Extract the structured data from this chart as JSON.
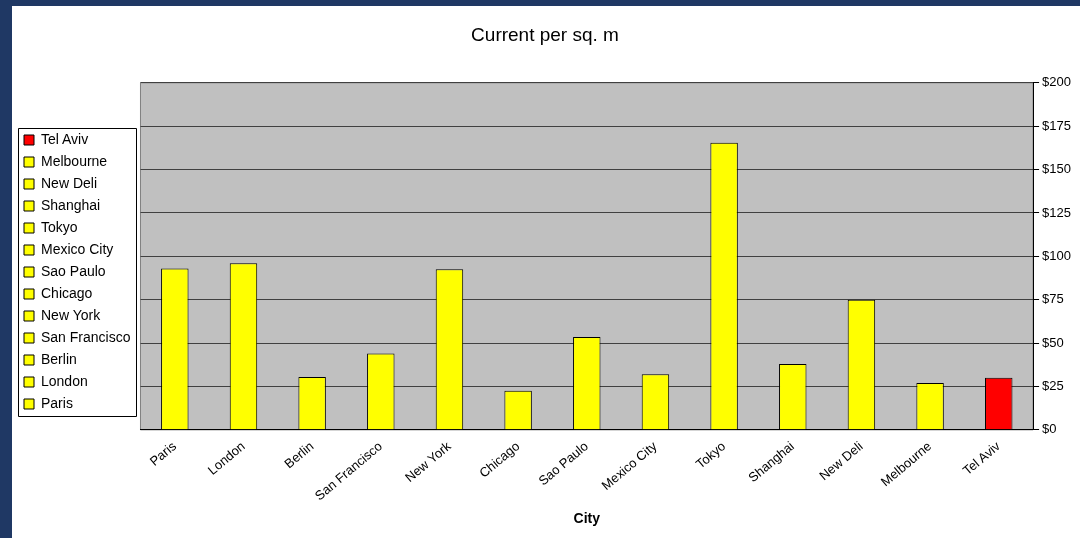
{
  "chart_data": {
    "type": "bar",
    "title": "Current per sq. m",
    "xlabel": "City",
    "categories": [
      "Paris",
      "London",
      "Berlin",
      "San Francisco",
      "New York",
      "Chicago",
      "Sao Paulo",
      "Mexico City",
      "Tokyo",
      "Shanghai",
      "New Deli",
      "Melbourne",
      "Tel Aviv"
    ],
    "series": [
      {
        "name": "Paris",
        "color": "#ffff00",
        "values": [
          93,
          null,
          null,
          null,
          null,
          null,
          null,
          null,
          null,
          null,
          null,
          null,
          null
        ]
      },
      {
        "name": "London",
        "color": "#ffff00",
        "values": [
          null,
          96,
          null,
          null,
          null,
          null,
          null,
          null,
          null,
          null,
          null,
          null,
          null
        ]
      },
      {
        "name": "Berlin",
        "color": "#ffff00",
        "values": [
          null,
          null,
          30.5,
          null,
          null,
          null,
          null,
          null,
          null,
          null,
          null,
          null,
          null
        ]
      },
      {
        "name": "San Francisco",
        "color": "#ffff00",
        "values": [
          null,
          null,
          null,
          44,
          null,
          null,
          null,
          null,
          null,
          null,
          null,
          null,
          null
        ]
      },
      {
        "name": "New York",
        "color": "#ffff00",
        "values": [
          null,
          null,
          null,
          null,
          92.5,
          null,
          null,
          null,
          null,
          null,
          null,
          null,
          null
        ]
      },
      {
        "name": "Chicago",
        "color": "#ffff00",
        "values": [
          null,
          null,
          null,
          null,
          null,
          22.5,
          null,
          null,
          null,
          null,
          null,
          null,
          null
        ]
      },
      {
        "name": "Sao Paulo",
        "color": "#ffff00",
        "values": [
          null,
          null,
          null,
          null,
          null,
          null,
          53.5,
          null,
          null,
          null,
          null,
          null,
          null
        ]
      },
      {
        "name": "Mexico City",
        "color": "#ffff00",
        "values": [
          null,
          null,
          null,
          null,
          null,
          null,
          null,
          32,
          null,
          null,
          null,
          null,
          null
        ]
      },
      {
        "name": "Tokyo",
        "color": "#ffff00",
        "values": [
          null,
          null,
          null,
          null,
          null,
          null,
          null,
          null,
          165.5,
          null,
          null,
          null,
          null
        ]
      },
      {
        "name": "Shanghai",
        "color": "#ffff00",
        "values": [
          null,
          null,
          null,
          null,
          null,
          null,
          null,
          null,
          null,
          38,
          null,
          null,
          null
        ]
      },
      {
        "name": "New Deli",
        "color": "#ffff00",
        "values": [
          null,
          null,
          null,
          null,
          null,
          null,
          null,
          null,
          null,
          null,
          75,
          null,
          null
        ]
      },
      {
        "name": "Melbourne",
        "color": "#ffff00",
        "values": [
          null,
          null,
          null,
          null,
          null,
          null,
          null,
          null,
          null,
          null,
          null,
          27,
          null
        ]
      },
      {
        "name": "Tel Aviv",
        "color": "#ff0000",
        "values": [
          null,
          null,
          null,
          null,
          null,
          null,
          null,
          null,
          null,
          null,
          null,
          null,
          30
        ]
      }
    ],
    "ylim": [
      0,
      200
    ],
    "yticks": [
      {
        "value": 0,
        "label": "$0"
      },
      {
        "value": 25,
        "label": "$25"
      },
      {
        "value": 50,
        "label": "$50"
      },
      {
        "value": 75,
        "label": "$75"
      },
      {
        "value": 100,
        "label": "$100"
      },
      {
        "value": 125,
        "label": "$125"
      },
      {
        "value": 150,
        "label": "$150"
      },
      {
        "value": 175,
        "label": "$175"
      },
      {
        "value": 200,
        "label": "$200"
      }
    ],
    "grid": "y",
    "legend": "left"
  }
}
